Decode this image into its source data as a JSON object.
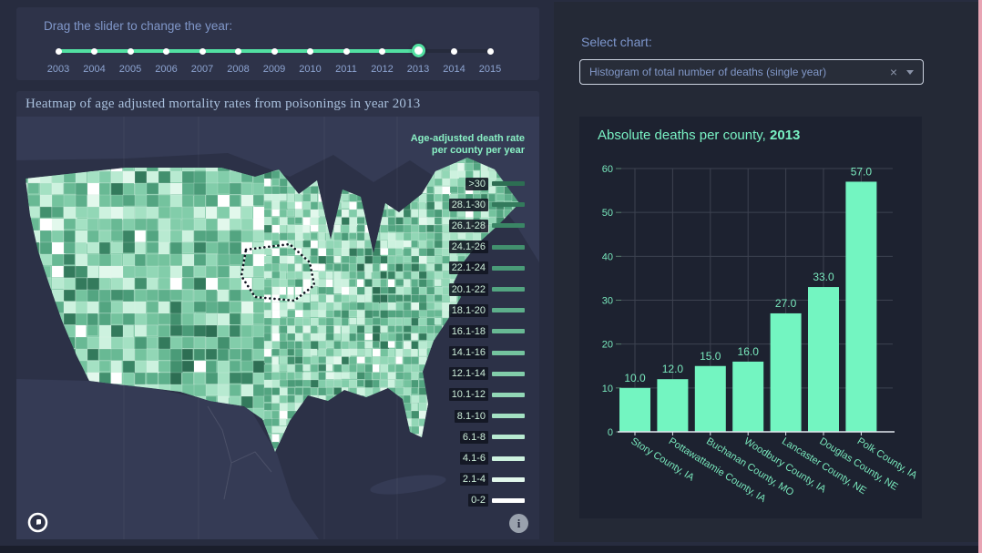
{
  "theme": {
    "page_bg": "#272c3f",
    "card_bg": "#2e3349",
    "right_panel_bg": "#242936",
    "chart_card_bg": "#1d2230",
    "map_ocean": "#2c3147",
    "map_foreign_land": "#353b55",
    "accent_green": "#52e0a2",
    "mint": "#73f5c1",
    "label_blue": "#8097c9",
    "scrollbar_pink": "#e8a4b4"
  },
  "slider_card": {
    "title": "Drag the slider to change the year:",
    "years": [
      "2003",
      "2004",
      "2005",
      "2006",
      "2007",
      "2008",
      "2009",
      "2010",
      "2011",
      "2012",
      "2013",
      "2014",
      "2015"
    ],
    "selected_year": "2013"
  },
  "map_card": {
    "title": "Heatmap of age adjusted mortality rates from poisonings in year 2013",
    "legend_title_line1": "Age-adjusted death rate",
    "legend_title_line2": "per county per year",
    "legend": [
      {
        "label": ">30",
        "color": "#2d6e53"
      },
      {
        "label": "28.1-30",
        "color": "#337a5c"
      },
      {
        "label": "26.1-28",
        "color": "#3a8565"
      },
      {
        "label": "24.1-26",
        "color": "#42906e"
      },
      {
        "label": "22.1-24",
        "color": "#4a9b78"
      },
      {
        "label": "20.1-22",
        "color": "#53a581"
      },
      {
        "label": "18.1-20",
        "color": "#5daf8b"
      },
      {
        "label": "16.1-18",
        "color": "#68b994"
      },
      {
        "label": "14.1-16",
        "color": "#74c39e"
      },
      {
        "label": "12.1-14",
        "color": "#82cdaa"
      },
      {
        "label": "10.1-12",
        "color": "#92d7b6"
      },
      {
        "label": "8.1-10",
        "color": "#a4e1c3"
      },
      {
        "label": "6.1-8",
        "color": "#b8ead1"
      },
      {
        "label": "4.1-6",
        "color": "#cdf2df"
      },
      {
        "label": "2.1-4",
        "color": "#e2f8ec"
      },
      {
        "label": "0-2",
        "color": "#ffffff"
      }
    ],
    "icons": {
      "bottom_left": "mapbox-logo",
      "bottom_right": "info"
    }
  },
  "right_panel": {
    "select_label": "Select chart:",
    "dropdown": {
      "value": "Histogram of total number of deaths (single year)",
      "clear_icon": "×"
    }
  },
  "chart_data": {
    "type": "bar",
    "title_prefix": "Absolute deaths per county, ",
    "title_year": "2013",
    "categories": [
      "Story County, IA",
      "Pottawattamie County, IA",
      "Buchanan County, MO",
      "Woodbury County, IA",
      "Lancaster County, NE",
      "Douglas County, NE",
      "Polk County, IA"
    ],
    "values": [
      10,
      12,
      15,
      16,
      27,
      33,
      57
    ],
    "value_labels": [
      "10.0",
      "12.0",
      "15.0",
      "16.0",
      "27.0",
      "33.0",
      "57.0"
    ],
    "ylim": [
      0,
      60
    ],
    "yticks": [
      0,
      10,
      20,
      30,
      40,
      50,
      60
    ],
    "bar_color": "#73f5c1",
    "grid": true,
    "legend_position": "none"
  }
}
